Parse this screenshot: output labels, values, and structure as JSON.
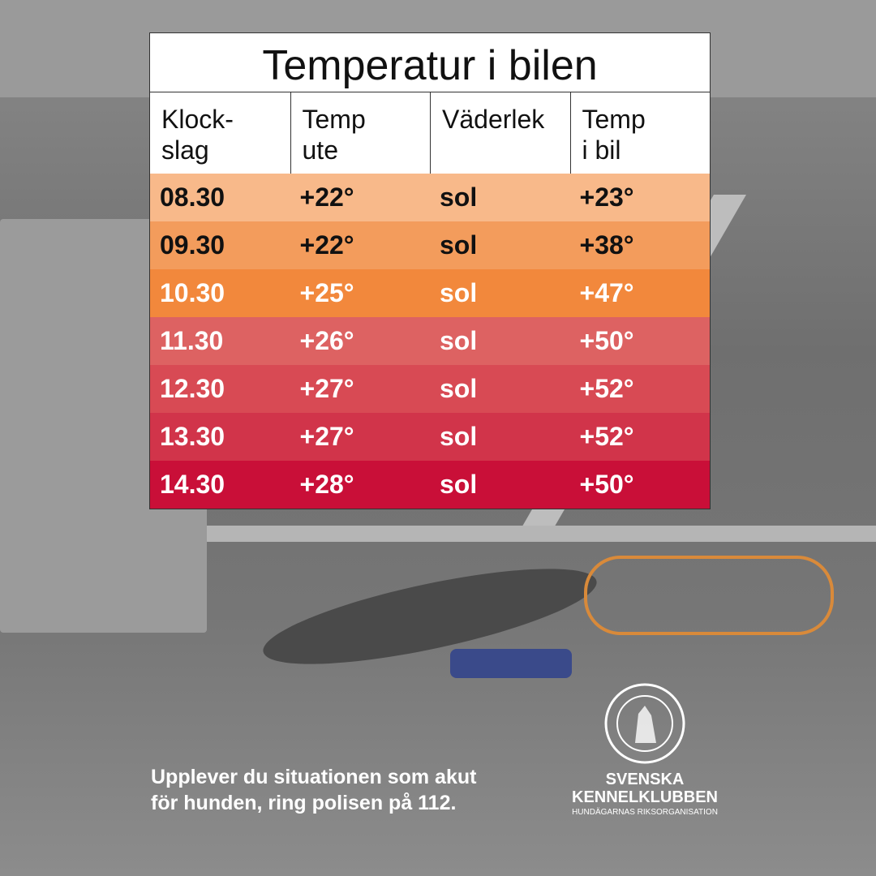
{
  "title": "Temperatur i bilen",
  "table": {
    "headers": [
      [
        "Klock-",
        "slag"
      ],
      [
        "Temp",
        "ute"
      ],
      [
        "Väderlek"
      ],
      [
        "Temp",
        "i bil"
      ]
    ],
    "rows": [
      [
        "08.30",
        "+22°",
        "sol",
        "+23°"
      ],
      [
        "09.30",
        "+22°",
        "sol",
        "+38°"
      ],
      [
        "10.30",
        "+25°",
        "sol",
        "+47°"
      ],
      [
        "11.30",
        "+26°",
        "sol",
        "+50°"
      ],
      [
        "12.30",
        "+27°",
        "sol",
        "+52°"
      ],
      [
        "13.30",
        "+27°",
        "sol",
        "+52°"
      ],
      [
        "14.30",
        "+28°",
        "sol",
        "+50°"
      ]
    ],
    "row_colors": [
      "#f8b98a",
      "#f39c5c",
      "#f2883c",
      "#dd6262",
      "#d84a54",
      "#d1344a",
      "#c90f38"
    ]
  },
  "footer": [
    "Upplever du situationen som akut",
    "för hunden, ring polisen på 112."
  ],
  "logo": [
    "SVENSKA",
    "KENNELKLUBBEN",
    "HUNDÄGARNAS RIKSORGANISATION"
  ]
}
